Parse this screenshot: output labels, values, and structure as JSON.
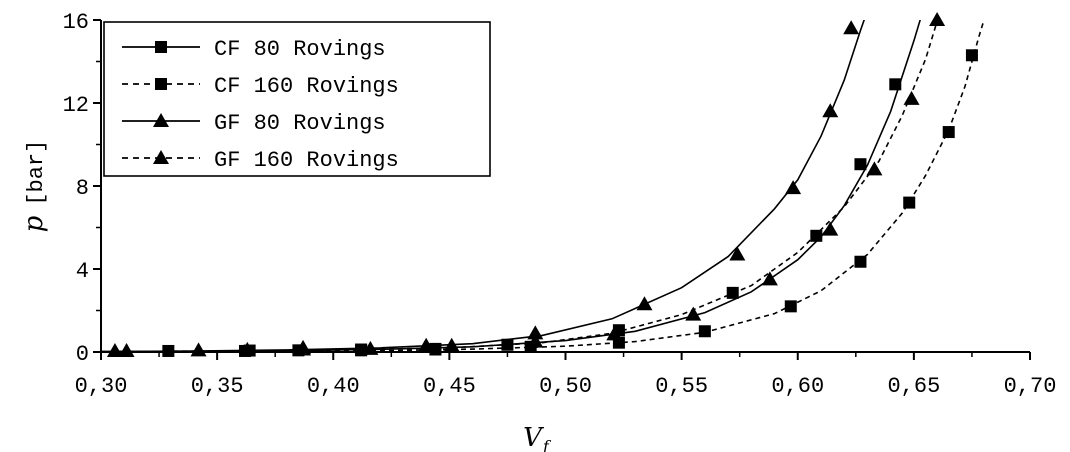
{
  "chart_data": {
    "type": "scatter",
    "title": "",
    "xlabel": "V_f",
    "xlabel_main": "V",
    "xlabel_sub": "f",
    "ylabel_symbol": "p",
    "ylabel_unit": "[bar]",
    "xlim": [
      0.3,
      0.7
    ],
    "ylim": [
      0,
      16
    ],
    "xticks": [
      0.3,
      0.35,
      0.4,
      0.45,
      0.5,
      0.55,
      0.6,
      0.65,
      0.7
    ],
    "xtick_labels": [
      "0,30",
      "0,35",
      "0,40",
      "0,45",
      "0,50",
      "0,55",
      "0,60",
      "0,65",
      "0,70"
    ],
    "yticks": [
      0,
      4,
      8,
      12,
      16
    ],
    "ytick_labels": [
      "0",
      "4",
      "8",
      "12",
      "16"
    ],
    "grid": false,
    "legend_position": "top-left",
    "series": [
      {
        "name": "CF 80 Rovings",
        "marker": "square",
        "line": "solid",
        "points": [
          [
            0.329,
            0.05
          ],
          [
            0.364,
            0.07
          ],
          [
            0.385,
            0.08
          ],
          [
            0.412,
            0.12
          ],
          [
            0.444,
            0.15
          ],
          [
            0.475,
            0.35
          ],
          [
            0.523,
            1.05
          ],
          [
            0.572,
            2.85
          ],
          [
            0.608,
            5.6
          ],
          [
            0.627,
            9.05
          ],
          [
            0.642,
            12.9
          ]
        ],
        "fit": [
          [
            0.3,
            0.018
          ],
          [
            0.34,
            0.034
          ],
          [
            0.38,
            0.065
          ],
          [
            0.42,
            0.13
          ],
          [
            0.46,
            0.25
          ],
          [
            0.5,
            0.55
          ],
          [
            0.53,
            1.0
          ],
          [
            0.56,
            1.9
          ],
          [
            0.58,
            2.9
          ],
          [
            0.6,
            4.45
          ],
          [
            0.61,
            5.55
          ],
          [
            0.62,
            7.05
          ],
          [
            0.63,
            9.0
          ],
          [
            0.64,
            11.6
          ],
          [
            0.65,
            15.0
          ],
          [
            0.6535,
            16.3
          ]
        ]
      },
      {
        "name": "CF 160 Rovings",
        "marker": "square",
        "line": "dashed",
        "points": [
          [
            0.362,
            0.05
          ],
          [
            0.412,
            0.08
          ],
          [
            0.444,
            0.12
          ],
          [
            0.485,
            0.25
          ],
          [
            0.523,
            0.45
          ],
          [
            0.56,
            1.0
          ],
          [
            0.597,
            2.2
          ],
          [
            0.627,
            4.35
          ],
          [
            0.648,
            7.2
          ],
          [
            0.665,
            10.6
          ],
          [
            0.675,
            14.3
          ]
        ],
        "fit": [
          [
            0.3,
            0.0
          ],
          [
            0.36,
            0.02
          ],
          [
            0.42,
            0.06
          ],
          [
            0.46,
            0.14
          ],
          [
            0.5,
            0.28
          ],
          [
            0.53,
            0.5
          ],
          [
            0.56,
            0.95
          ],
          [
            0.59,
            1.85
          ],
          [
            0.61,
            2.95
          ],
          [
            0.63,
            4.7
          ],
          [
            0.645,
            6.7
          ],
          [
            0.655,
            8.5
          ],
          [
            0.665,
            10.7
          ],
          [
            0.672,
            12.8
          ],
          [
            0.678,
            15.2
          ],
          [
            0.681,
            16.3
          ]
        ]
      },
      {
        "name": "GF 80 Rovings",
        "marker": "triangle",
        "line": "solid",
        "points": [
          [
            0.306,
            0.05
          ],
          [
            0.342,
            0.08
          ],
          [
            0.363,
            0.1
          ],
          [
            0.387,
            0.12
          ],
          [
            0.416,
            0.15
          ],
          [
            0.44,
            0.3
          ],
          [
            0.487,
            0.9
          ],
          [
            0.534,
            2.3
          ],
          [
            0.574,
            4.7
          ],
          [
            0.598,
            7.9
          ],
          [
            0.614,
            11.6
          ],
          [
            0.623,
            15.6
          ]
        ],
        "fit": [
          [
            0.3,
            0.02
          ],
          [
            0.34,
            0.05
          ],
          [
            0.38,
            0.1
          ],
          [
            0.42,
            0.2
          ],
          [
            0.46,
            0.4
          ],
          [
            0.49,
            0.8
          ],
          [
            0.52,
            1.6
          ],
          [
            0.55,
            3.1
          ],
          [
            0.57,
            4.6
          ],
          [
            0.59,
            6.9
          ],
          [
            0.6,
            8.3
          ],
          [
            0.61,
            10.4
          ],
          [
            0.62,
            13.1
          ],
          [
            0.627,
            15.5
          ],
          [
            0.6295,
            16.3
          ]
        ]
      },
      {
        "name": "GF 160 Rovings",
        "marker": "triangle",
        "line": "dashed",
        "points": [
          [
            0.311,
            0.05
          ],
          [
            0.387,
            0.2
          ],
          [
            0.451,
            0.3
          ],
          [
            0.487,
            0.5
          ],
          [
            0.521,
            0.85
          ],
          [
            0.555,
            1.8
          ],
          [
            0.588,
            3.5
          ],
          [
            0.614,
            5.9
          ],
          [
            0.633,
            8.8
          ],
          [
            0.649,
            12.2
          ],
          [
            0.66,
            16.0
          ]
        ],
        "fit": [
          [
            0.3,
            0.02
          ],
          [
            0.35,
            0.05
          ],
          [
            0.4,
            0.1
          ],
          [
            0.45,
            0.2
          ],
          [
            0.49,
            0.45
          ],
          [
            0.52,
            0.9
          ],
          [
            0.55,
            1.8
          ],
          [
            0.58,
            3.2
          ],
          [
            0.6,
            4.8
          ],
          [
            0.62,
            7.0
          ],
          [
            0.635,
            9.2
          ],
          [
            0.645,
            11.4
          ],
          [
            0.655,
            14.1
          ],
          [
            0.661,
            16.3
          ]
        ]
      }
    ]
  }
}
